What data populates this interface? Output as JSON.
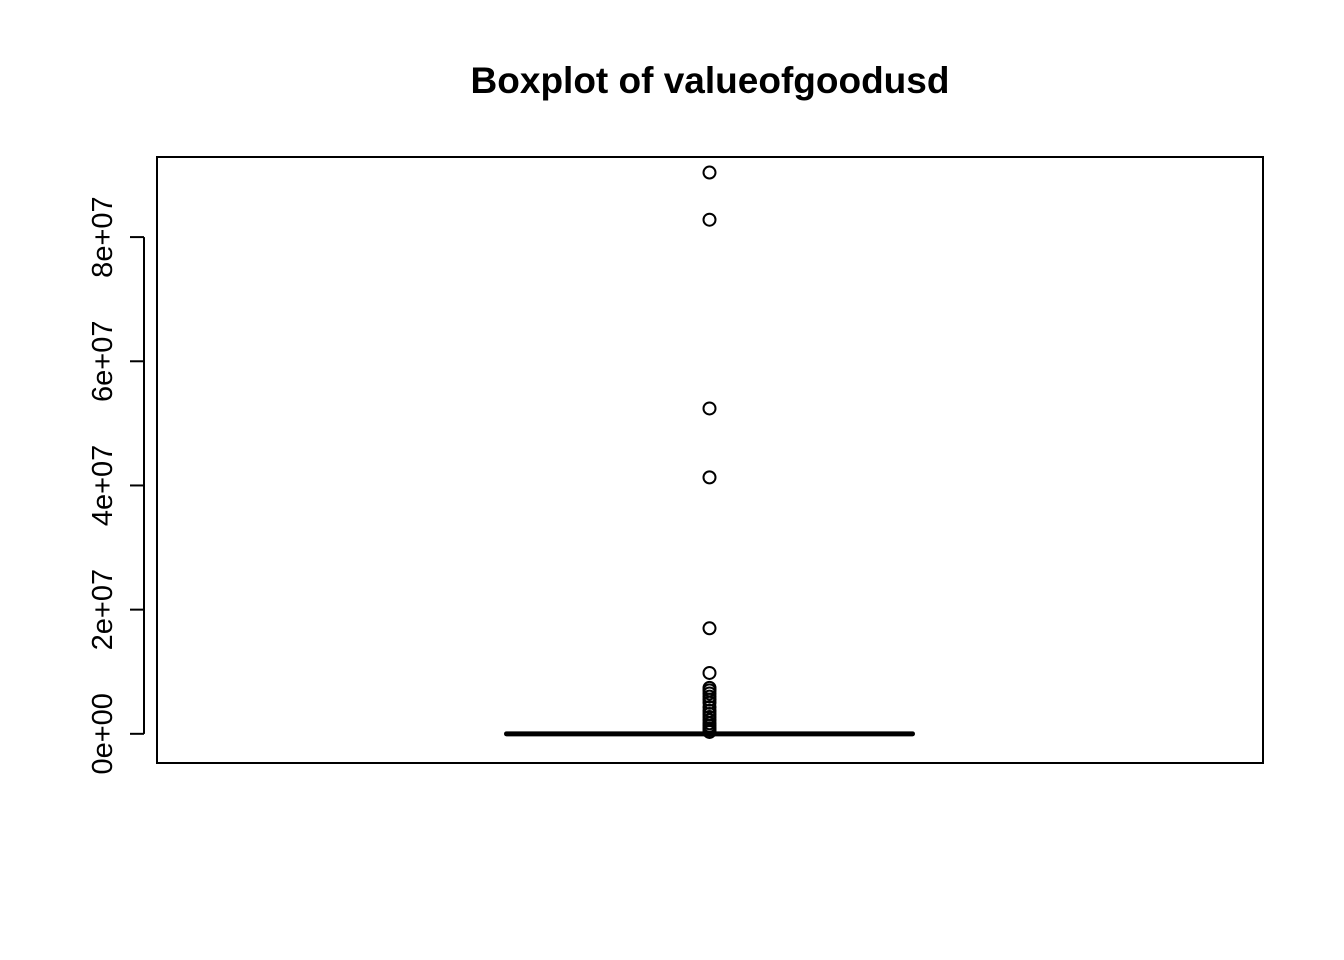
{
  "chart_data": {
    "type": "boxplot",
    "title": "Boxplot of valueofgoodusd",
    "xlabel": "",
    "ylabel": "",
    "ylim": [
      -4700000,
      92900000
    ],
    "y_ticks": [
      0,
      20000000,
      40000000,
      60000000,
      80000000
    ],
    "y_tick_labels": [
      "0e+00",
      "2e+07",
      "4e+07",
      "6e+07",
      "8e+07"
    ],
    "grid": false,
    "box": {
      "min": 0,
      "q1": 0,
      "median": 0,
      "q3": 0,
      "max": 0
    },
    "outliers": [
      90400000,
      82800000,
      52400000,
      41300000,
      17000000,
      9800000,
      7400000,
      7000000,
      6500000,
      6000000,
      5500000,
      5000000,
      4300000,
      3700000,
      3200000,
      2700000,
      2200000,
      1700000,
      1300000,
      900000,
      600000,
      300000
    ],
    "colors": {
      "stroke": "#000000",
      "background": "#ffffff"
    }
  }
}
